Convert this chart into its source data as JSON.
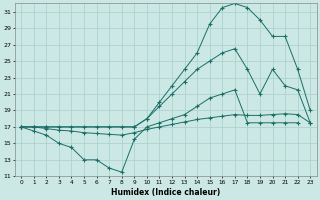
{
  "xlabel": "Humidex (Indice chaleur)",
  "background_color": "#cce8e5",
  "grid_color": "#aacfcc",
  "line_color": "#1a6e66",
  "xlim": [
    -0.5,
    23.5
  ],
  "ylim": [
    11,
    32
  ],
  "xticks": [
    0,
    1,
    2,
    3,
    4,
    5,
    6,
    7,
    8,
    9,
    10,
    11,
    12,
    13,
    14,
    15,
    16,
    17,
    18,
    19,
    20,
    21,
    22,
    23
  ],
  "yticks": [
    11,
    13,
    15,
    17,
    19,
    21,
    23,
    25,
    27,
    29,
    31
  ],
  "line_max_x": [
    0,
    1,
    2,
    9,
    10,
    11,
    12,
    13,
    14,
    15,
    16,
    17,
    18,
    19,
    20,
    21,
    22,
    23
  ],
  "line_max_y": [
    17,
    17,
    17,
    17,
    18,
    20,
    22,
    24,
    26,
    29.5,
    31.5,
    32,
    31.5,
    30,
    28,
    28,
    24,
    19
  ],
  "line_mid_x": [
    0,
    1,
    2,
    3,
    4,
    5,
    6,
    7,
    8,
    9,
    10,
    11,
    12,
    13,
    14,
    15,
    16,
    17,
    18,
    19,
    20,
    21,
    22,
    23
  ],
  "line_mid_y": [
    17,
    17,
    17,
    17,
    17,
    17,
    17,
    17,
    17,
    17,
    18,
    19.5,
    21,
    22.5,
    24,
    25,
    26,
    26.5,
    24,
    21,
    24,
    22,
    21.5,
    17.5
  ],
  "line_min_x": [
    0,
    1,
    2,
    3,
    4,
    5,
    6,
    7,
    8,
    9,
    10,
    11,
    12,
    13,
    14,
    15,
    16,
    17,
    18,
    19,
    20,
    21,
    22
  ],
  "line_min_y": [
    17,
    16.5,
    16,
    15,
    14.5,
    13,
    13,
    12,
    11.5,
    15.5,
    17,
    17.5,
    18,
    18.5,
    19.5,
    20.5,
    21,
    21.5,
    17.5,
    17.5,
    17.5,
    17.5,
    17.5
  ],
  "line_mean_x": [
    0,
    1,
    2,
    3,
    4,
    5,
    6,
    7,
    8,
    9,
    10,
    11,
    12,
    13,
    14,
    15,
    16,
    17,
    18,
    19,
    20,
    21,
    22,
    23
  ],
  "line_mean_y": [
    17,
    17,
    16.8,
    16.6,
    16.5,
    16.3,
    16.2,
    16.1,
    16.0,
    16.3,
    16.7,
    17.0,
    17.3,
    17.6,
    17.9,
    18.1,
    18.3,
    18.5,
    18.4,
    18.4,
    18.5,
    18.6,
    18.5,
    17.5
  ]
}
